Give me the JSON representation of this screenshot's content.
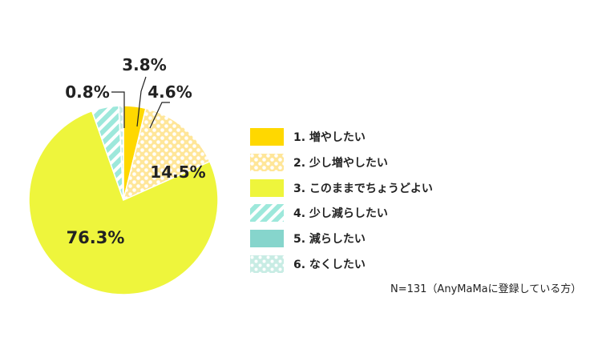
{
  "chart_data": {
    "type": "pie",
    "categories": [
      "1. 増やしたい",
      "2. 少し増やしたい",
      "3. このままでちょうどよい",
      "4. 少し減らしたい",
      "5. 減らしたい",
      "6. なくしたい"
    ],
    "values": [
      3.8,
      14.5,
      76.3,
      4.6,
      0.0,
      0.8
    ],
    "value_labels": [
      "3.8%",
      "14.5%",
      "76.3%",
      "4.6%",
      "",
      "0.8%"
    ],
    "colors": [
      "#FFD800",
      "#FFE699",
      "#EEF53C",
      "#9DE8DB",
      "#86D5CC",
      "#C8ECE4"
    ],
    "patterns": [
      "solid",
      "dots",
      "solid",
      "stripes",
      "solid",
      "dots"
    ],
    "legend_position": "right",
    "note": "N=131（AnyMaMaに登録している方）"
  }
}
